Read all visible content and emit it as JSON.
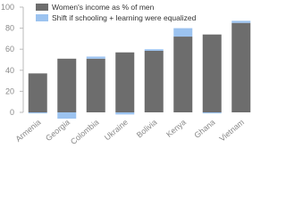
{
  "chart_data": {
    "type": "bar",
    "categories": [
      "Armenia",
      "Georgia",
      "Colombia",
      "Ukraine",
      "Bolivia",
      "Kenya",
      "Ghana",
      "Vietnam"
    ],
    "series": [
      {
        "name": "Women's income as % of men",
        "color": "#6d6d6d",
        "values": [
          37,
          51,
          51,
          57,
          58.5,
          72,
          74,
          85
        ]
      },
      {
        "name": "Shift if schooling + learning were equalized",
        "color": "#9cc3f0",
        "values": [
          -1,
          -6,
          2,
          -2,
          1.5,
          8,
          -1,
          2
        ]
      }
    ],
    "ylim": [
      0,
      100
    ],
    "yticks": [
      0,
      20,
      40,
      60,
      80,
      100
    ]
  }
}
